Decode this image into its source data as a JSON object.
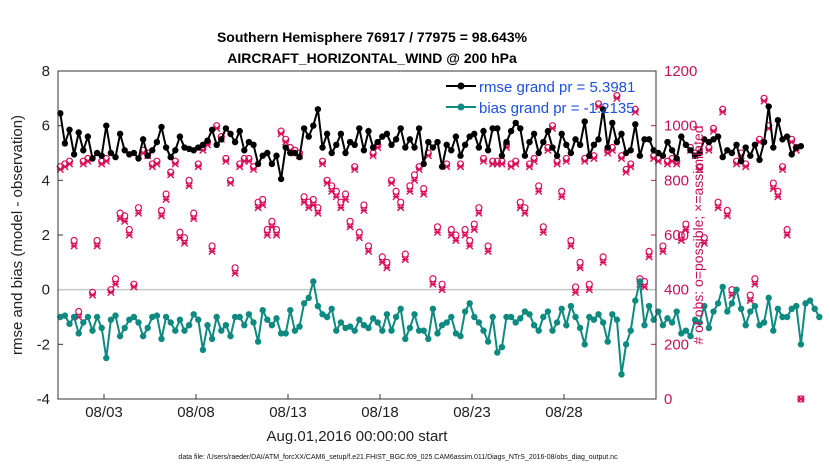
{
  "chart_data": {
    "type": "line",
    "title_line1": "Southern Hemisphere 76917 / 77975 = 98.643%",
    "title_line2": "AIRCRAFT_HORIZONTAL_WIND @ 200 hPa",
    "xlabel": "Aug.01,2016 00:00:00 start",
    "ylabel": "rmse and bias (model - observation)",
    "y2label": "# of obs: o=possible; ×=assimilated",
    "footnote": "data file: /Users/raeder/DAI/ATM_forcXX/CAM6_setup/f.e21.FHIST_BGC.f09_025.CAM6assim.011/Diags_NTrS_2016-08/obs_diag_output.nc",
    "x_range": [
      0,
      32.5
    ],
    "ylim": [
      -4,
      8
    ],
    "y2lim": [
      0,
      1200
    ],
    "x_ticks": [
      {
        "x": 2.5,
        "label": "08/03"
      },
      {
        "x": 7.5,
        "label": "08/08"
      },
      {
        "x": 12.5,
        "label": "08/13"
      },
      {
        "x": 17.5,
        "label": "08/18"
      },
      {
        "x": 22.5,
        "label": "08/23"
      },
      {
        "x": 27.5,
        "label": "08/28"
      }
    ],
    "y_ticks": [
      "-4",
      "-2",
      "0",
      "2",
      "4",
      "6",
      "8"
    ],
    "y2_ticks": [
      "0",
      "200",
      "400",
      "600",
      "800",
      "1000",
      "1200"
    ],
    "zero_line": 0,
    "legend": {
      "placement": "top-right",
      "entries": [
        "rmse grand pr = 5.3981",
        "bias grand pr = -1.2135"
      ]
    },
    "x_step": 0.25,
    "x_start": 0.125,
    "colors": {
      "rmse": "#000000",
      "bias": "#0f8a80",
      "obs": "#d8105a",
      "zero": "#c8c8c8",
      "legend_text": "#1f4fe0"
    },
    "series": [
      {
        "name": "rmse grand pr = 5.3981",
        "values": [
          6.45,
          5.35,
          5.85,
          4.95,
          5.75,
          5.1,
          5.6,
          4.8,
          5.0,
          4.9,
          6.0,
          5.0,
          4.85,
          5.7,
          5.1,
          4.95,
          5.0,
          4.8,
          5.5,
          4.9,
          5.1,
          5.4,
          5.95,
          5.2,
          4.85,
          5.1,
          5.6,
          5.2,
          5.15,
          5.1,
          5.2,
          5.3,
          5.45,
          5.85,
          5.3,
          5.5,
          5.9,
          5.7,
          5.4,
          5.8,
          5.1,
          5.4,
          5.3,
          4.6,
          4.9,
          5.0,
          4.6,
          4.9,
          4.05,
          5.2,
          5.0,
          5.0,
          4.85,
          5.9,
          5.6,
          6.0,
          6.6,
          5.2,
          5.7,
          5.0,
          5.3,
          5.7,
          5.0,
          5.4,
          5.3,
          5.9,
          5.1,
          5.8,
          5.2,
          5.4,
          5.6,
          5.7,
          5.3,
          5.5,
          5.9,
          5.2,
          5.5,
          5.2,
          5.9,
          4.6,
          5.4,
          5.2,
          5.4,
          4.5,
          5.3,
          5.1,
          5.6,
          4.9,
          5.3,
          5.6,
          5.7,
          5.2,
          5.8,
          5.1,
          5.9,
          5.9,
          4.9,
          5.4,
          5.8,
          6.1,
          5.9,
          4.9,
          5.4,
          5.7,
          5.0,
          5.4,
          5.8,
          5.2,
          4.9,
          5.7,
          5.3,
          5.0,
          5.5,
          5.3,
          6.15,
          4.9,
          5.3,
          5.5,
          6.6,
          5.2,
          6.1,
          5.4,
          5.7,
          5.0,
          5.1,
          6.05,
          4.9,
          5.5,
          5.5,
          5.1,
          5.0,
          4.9,
          5.4,
          5.1,
          4.8,
          5.6,
          5.3,
          5.1,
          4.9,
          5.0,
          5.5,
          5.4,
          5.5,
          5.6,
          4.85,
          5.1,
          5.0,
          5.3,
          4.7,
          5.2,
          4.9,
          5.3,
          4.75,
          5.4,
          6.7,
          5.2,
          6.2,
          5.5,
          5.6,
          4.95,
          5.2,
          5.25
        ]
      },
      {
        "name": "bias grand pr = -1.2135",
        "values": [
          -1.0,
          -0.95,
          -1.25,
          -1.0,
          -1.6,
          -1.2,
          -1.0,
          -1.5,
          -1.0,
          -1.4,
          -2.5,
          -1.1,
          -0.95,
          -1.7,
          -1.4,
          -1.1,
          -1.0,
          -1.2,
          -1.7,
          -1.4,
          -1.0,
          -0.95,
          -1.8,
          -1.0,
          -1.2,
          -1.5,
          -1.1,
          -1.5,
          -1.3,
          -0.9,
          -1.1,
          -2.2,
          -1.3,
          -1.8,
          -1.0,
          -1.5,
          -1.3,
          -1.7,
          -1.0,
          -1.0,
          -1.3,
          -0.9,
          -1.2,
          -1.9,
          -0.75,
          -1.1,
          -1.3,
          -1.05,
          -1.6,
          -1.6,
          -0.75,
          -1.5,
          -1.35,
          -0.5,
          -0.3,
          0.3,
          -0.6,
          -0.9,
          -1.0,
          -0.7,
          -1.5,
          -1.2,
          -1.4,
          -1.35,
          -1.5,
          -1.1,
          -1.3,
          -1.4,
          -1.05,
          -1.2,
          -1.5,
          -0.9,
          -1.5,
          -1.0,
          -0.7,
          -1.8,
          -1.4,
          -0.9,
          -1.5,
          -1.5,
          -1.8,
          -0.7,
          -1.6,
          -1.3,
          -1.2,
          -1.0,
          -1.6,
          -1.7,
          -0.8,
          -0.5,
          -1.0,
          -1.2,
          -1.5,
          -1.9,
          -1.0,
          -2.3,
          -2.1,
          -1.0,
          -1.0,
          -1.2,
          -1.05,
          -0.8,
          -0.9,
          -1.3,
          -1.5,
          -1.0,
          -0.8,
          -1.5,
          -1.2,
          -0.7,
          -1.3,
          -0.6,
          -1.0,
          -1.4,
          -2.0,
          -1.0,
          -1.1,
          -0.9,
          -1.2,
          -1.9,
          -0.9,
          -1.1,
          -3.1,
          -2.0,
          -1.5,
          -0.4,
          0.3,
          -1.3,
          -0.6,
          -1.1,
          -0.8,
          -1.3,
          -1.05,
          -1.2,
          -0.8,
          -1.6,
          -1.5,
          -1.7,
          -1.1,
          -1.2,
          -0.6,
          -1.4,
          -0.8,
          -0.5,
          0.1,
          -0.8,
          -0.5,
          0.0,
          -0.7,
          -1.3,
          -0.8,
          -0.6,
          -1.3,
          -1.2,
          -0.3,
          -1.5,
          -0.7,
          -1.0,
          -1.0,
          -0.7,
          -0.6,
          -2.0,
          -0.5,
          -0.4,
          -0.7,
          -1.0
        ]
      },
      {
        "name": "",
        "marker": "o",
        "axis": "right",
        "values": [
          850,
          860,
          870,
          580,
          320,
          870,
          880,
          390,
          580,
          870,
          880,
          400,
          440,
          680,
          670,
          620,
          420,
          700,
          910,
          900,
          860,
          870,
          690,
          750,
          830,
          870,
          610,
          590,
          800,
          680,
          860,
          920,
          940,
          560,
          1000,
          960,
          880,
          800,
          480,
          860,
          880,
          880,
          850,
          720,
          730,
          620,
          650,
          620,
          980,
          950,
          920,
          910,
          900,
          740,
          720,
          730,
          700,
          870,
          800,
          780,
          760,
          720,
          750,
          650,
          850,
          610,
          710,
          560,
          900,
          930,
          520,
          500,
          800,
          760,
          720,
          530,
          780,
          820,
          850,
          770,
          900,
          440,
          630,
          420,
          860,
          620,
          600,
          860,
          620,
          580,
          640,
          700,
          880,
          560,
          870,
          870,
          870,
          930,
          860,
          870,
          720,
          700,
          860,
          880,
          780,
          630,
          920,
          1000,
          870,
          760,
          880,
          580,
          410,
          500,
          880,
          420,
          890,
          1080,
          520,
          910,
          920,
          1110,
          890,
          840,
          860,
          1060,
          440,
          430,
          540,
          890,
          880,
          560,
          870,
          880,
          870,
          600,
          640,
          920,
          900,
          850,
          590,
          920,
          990,
          720,
          1060,
          690,
          400,
          870,
          900,
          860,
          380,
          440,
          950,
          1100,
          1000,
          790,
          760,
          850,
          620,
          950,
          920,
          0
        ]
      },
      {
        "name": "",
        "marker": "x",
        "axis": "right",
        "values": [
          840,
          850,
          860,
          560,
          300,
          860,
          870,
          380,
          560,
          860,
          870,
          390,
          420,
          660,
          650,
          600,
          410,
          680,
          900,
          890,
          850,
          860,
          670,
          730,
          820,
          860,
          590,
          570,
          780,
          660,
          850,
          910,
          930,
          540,
          990,
          950,
          870,
          790,
          460,
          850,
          870,
          870,
          840,
          700,
          710,
          600,
          630,
          600,
          970,
          940,
          910,
          900,
          890,
          720,
          700,
          710,
          680,
          860,
          790,
          760,
          740,
          700,
          730,
          630,
          840,
          590,
          690,
          540,
          890,
          920,
          500,
          480,
          790,
          740,
          700,
          510,
          760,
          800,
          840,
          750,
          890,
          420,
          610,
          400,
          850,
          600,
          580,
          850,
          600,
          560,
          620,
          680,
          870,
          540,
          860,
          860,
          860,
          920,
          850,
          860,
          700,
          680,
          850,
          870,
          760,
          610,
          910,
          990,
          860,
          740,
          870,
          560,
          390,
          480,
          870,
          400,
          880,
          1070,
          500,
          900,
          910,
          1100,
          880,
          830,
          850,
          1050,
          420,
          410,
          520,
          880,
          870,
          540,
          860,
          870,
          860,
          580,
          620,
          910,
          890,
          840,
          570,
          910,
          980,
          700,
          1050,
          670,
          380,
          860,
          890,
          850,
          360,
          420,
          940,
          1090,
          990,
          770,
          740,
          840,
          600,
          940,
          910,
          0
        ]
      }
    ]
  }
}
